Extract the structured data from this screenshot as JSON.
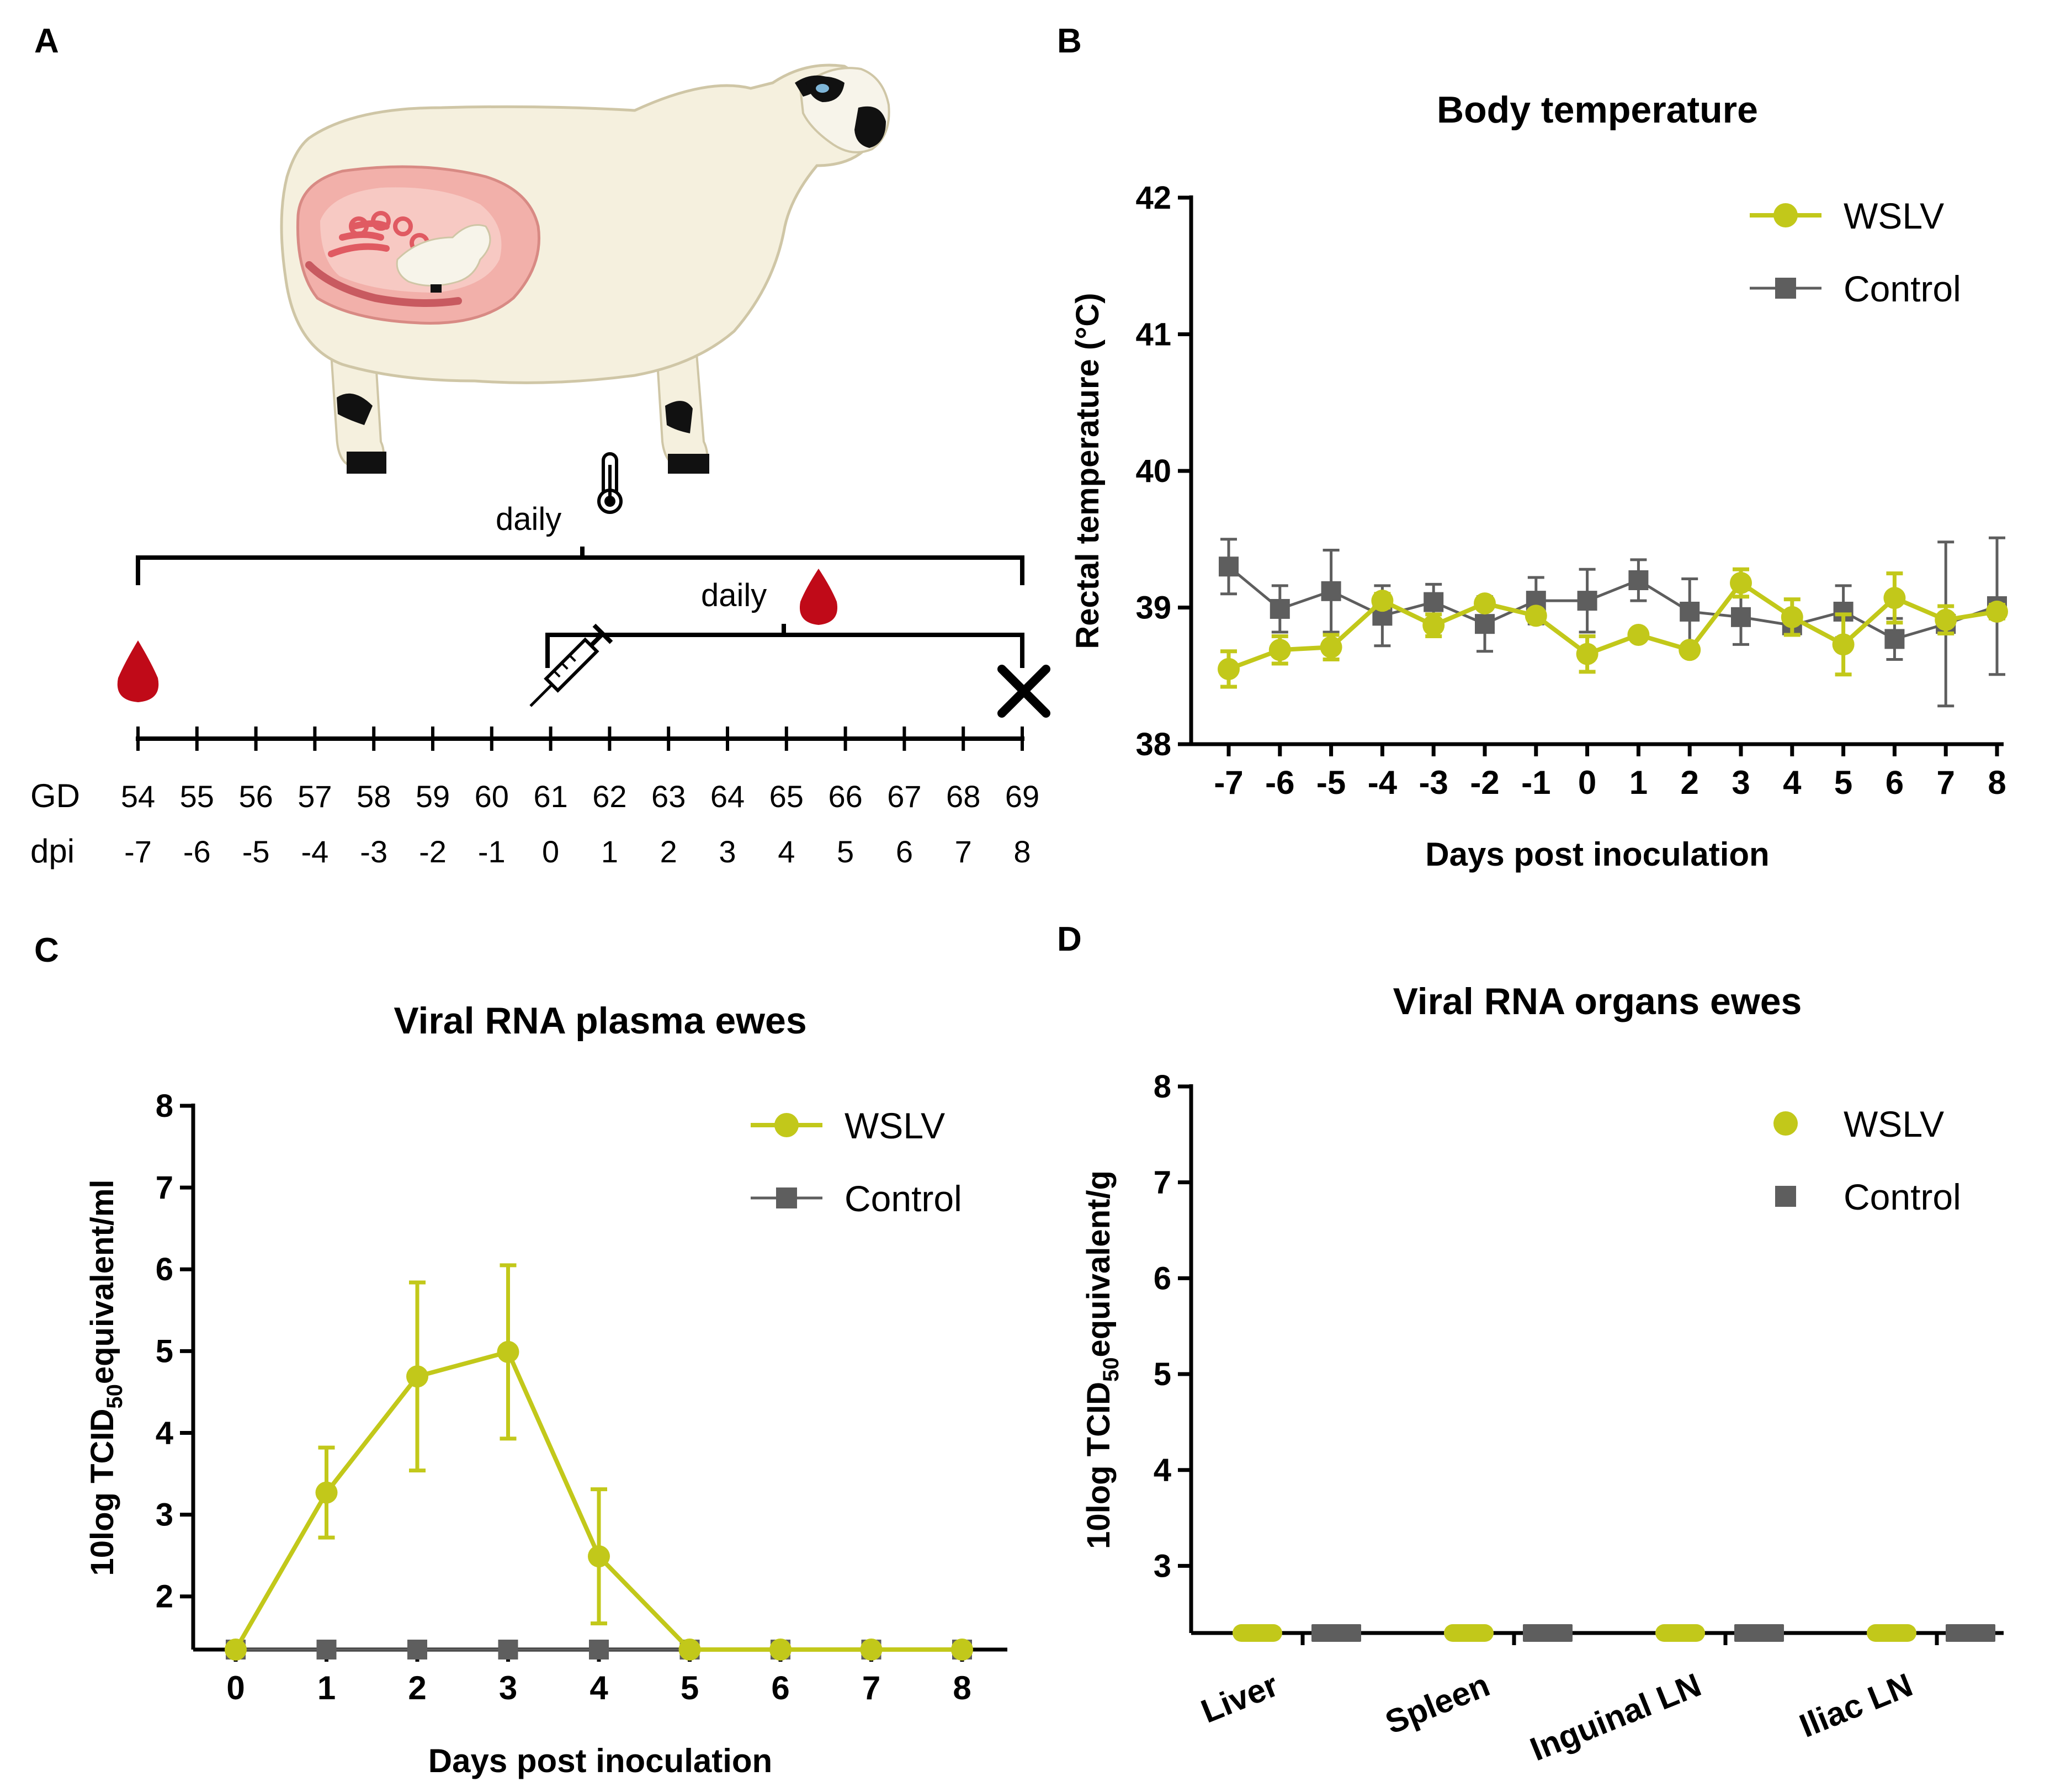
{
  "colors": {
    "wslv": "#c2c81a",
    "control": "#5e5e5e",
    "blood": "#c00a18",
    "axis": "#000000",
    "fleece": "#f5f0de",
    "uterus": "#f2b0aa"
  },
  "panelA": {
    "label": "A",
    "daily_temp_label": "daily",
    "daily_blood_label": "daily",
    "thermometer_icon": "thermometer-icon",
    "blood_icon": "blood-drop-icon",
    "syringe_icon": "syringe-icon",
    "end_icon": "cross-icon",
    "gd_label": "GD",
    "dpi_label": "dpi",
    "gd": [
      "54",
      "55",
      "56",
      "57",
      "58",
      "59",
      "60",
      "61",
      "62",
      "63",
      "64",
      "65",
      "66",
      "67",
      "68",
      "69"
    ],
    "dpi": [
      "-7",
      "-6",
      "-5",
      "-4",
      "-3",
      "-2",
      "-1",
      "0",
      "1",
      "2",
      "3",
      "4",
      "5",
      "6",
      "7",
      "8"
    ]
  },
  "panelB": {
    "label": "B"
  },
  "panelC": {
    "label": "C"
  },
  "panelD": {
    "label": "D"
  },
  "chart_data": [
    {
      "id": "B",
      "type": "line",
      "title": "Body temperature",
      "xlabel": "Days post inoculation",
      "ylabel": "Rectal temperature (°C)",
      "ylim": [
        38,
        42
      ],
      "yticks": [
        "38",
        "39",
        "40",
        "41",
        "42"
      ],
      "categories": [
        "-7",
        "-6",
        "-5",
        "-4",
        "-3",
        "-2",
        "-1",
        "0",
        "1",
        "2",
        "3",
        "4",
        "5",
        "6",
        "7",
        "8"
      ],
      "series": [
        {
          "name": "WSLV",
          "marker": "circle",
          "values": [
            38.55,
            38.69,
            38.71,
            39.05,
            38.87,
            39.03,
            38.94,
            38.66,
            38.8,
            38.69,
            39.18,
            38.93,
            38.73,
            39.07,
            38.91,
            38.97
          ],
          "error": [
            0.13,
            0.1,
            0.09,
            0.05,
            0.08,
            0.04,
            0.04,
            0.13,
            0.03,
            0.03,
            0.1,
            0.13,
            0.22,
            0.18,
            0.1,
            0.05
          ]
        },
        {
          "name": "Control",
          "marker": "square",
          "values": [
            39.3,
            38.99,
            39.12,
            38.94,
            39.04,
            38.88,
            39.05,
            39.05,
            39.2,
            38.97,
            38.93,
            38.87,
            38.97,
            38.77,
            38.88,
            39.01
          ],
          "error": [
            0.2,
            0.17,
            0.3,
            0.22,
            0.13,
            0.2,
            0.17,
            0.23,
            0.15,
            0.24,
            0.2,
            0.06,
            0.19,
            0.15,
            0.6,
            0.5
          ]
        }
      ]
    },
    {
      "id": "C",
      "type": "line",
      "title": "Viral RNA plasma ewes",
      "xlabel": "Days post inoculation",
      "ylabel": "10log TCID50equivalent/ml",
      "ylim": [
        1.35,
        8
      ],
      "yticks": [
        "2",
        "3",
        "4",
        "5",
        "6",
        "7",
        "8"
      ],
      "categories": [
        "0",
        "1",
        "2",
        "3",
        "4",
        "5",
        "6",
        "7",
        "8"
      ],
      "series": [
        {
          "name": "WSLV",
          "marker": "circle",
          "values": [
            1.35,
            3.27,
            4.69,
            4.99,
            2.49,
            1.35,
            1.35,
            1.35,
            1.35
          ],
          "error": [
            0,
            0.55,
            1.15,
            1.06,
            0.82,
            0,
            0,
            0,
            0
          ]
        },
        {
          "name": "Control",
          "marker": "square",
          "values": [
            1.35,
            1.35,
            1.35,
            1.35,
            1.35,
            1.35,
            1.35,
            1.35,
            1.35
          ],
          "error": [
            0,
            0,
            0,
            0,
            0,
            0,
            0,
            0,
            0
          ]
        }
      ]
    },
    {
      "id": "D",
      "type": "scatter",
      "title": "Viral RNA organs ewes",
      "xlabel": "",
      "ylabel": "10log TCID50equivalent/g",
      "ylim": [
        2.3,
        8
      ],
      "yticks": [
        "3",
        "4",
        "5",
        "6",
        "7",
        "8"
      ],
      "categories": [
        "Liver",
        "Spleen",
        "Inguinal LN",
        "Iliac LN"
      ],
      "series": [
        {
          "name": "WSLV",
          "marker": "circle",
          "values": [
            2.3,
            2.3,
            2.3,
            2.3
          ]
        },
        {
          "name": "Control",
          "marker": "square",
          "values": [
            2.3,
            2.3,
            2.3,
            2.3
          ]
        }
      ]
    }
  ]
}
